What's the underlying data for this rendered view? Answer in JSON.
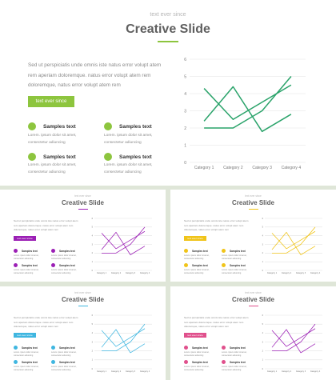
{
  "slide": {
    "subtitle": "text ever since",
    "title": "Creative Slide",
    "paragraph": "Sed ut perspiciatis unde omnis iste natus error volupt atem rem aperiam doloremque. natus error volupt atem rem doloremque, natus error volupt atem rem",
    "button_label": "text ever since",
    "bullets": [
      {
        "heading": "Samples text",
        "body": "Lorem. ipsum dolor sit amet, consectetur adiuncing"
      },
      {
        "heading": "Samples text",
        "body": "Lorem. ipsum dolor sit amet, consectetur adiuncing"
      },
      {
        "heading": "Samples text",
        "body": "Lorem. ipsum dolor sit amet, consectetur adiuncing"
      },
      {
        "heading": "Samples text",
        "body": "Lorem. ipsum dolor sit amet, consectetur adiuncing"
      }
    ]
  },
  "variants": [
    {
      "accent": "#8dc53e",
      "line_color": "#2aa36a"
    },
    {
      "accent": "#9b1fb5",
      "line_color": "#9b1fb5"
    },
    {
      "accent": "#f0c419",
      "line_color": "#f0c419"
    },
    {
      "accent": "#3fb6e0",
      "line_color": "#3fb6e0"
    },
    {
      "accent": "#e0508c",
      "line_color": "#9b1fb5"
    }
  ],
  "chart_data": {
    "type": "line",
    "categories": [
      "Category 1",
      "Category 2",
      "Category 3",
      "Category 4"
    ],
    "series": [
      {
        "values": [
          4.3,
          2.5,
          3.5,
          4.5
        ]
      },
      {
        "values": [
          2.4,
          4.4,
          1.8,
          2.8
        ]
      },
      {
        "values": [
          2.0,
          2.0,
          3.0,
          5.0
        ]
      }
    ],
    "ylim": [
      0,
      6
    ],
    "yticks": [
      "0",
      "1",
      "2",
      "3",
      "4",
      "5",
      "6"
    ],
    "grid": true
  }
}
